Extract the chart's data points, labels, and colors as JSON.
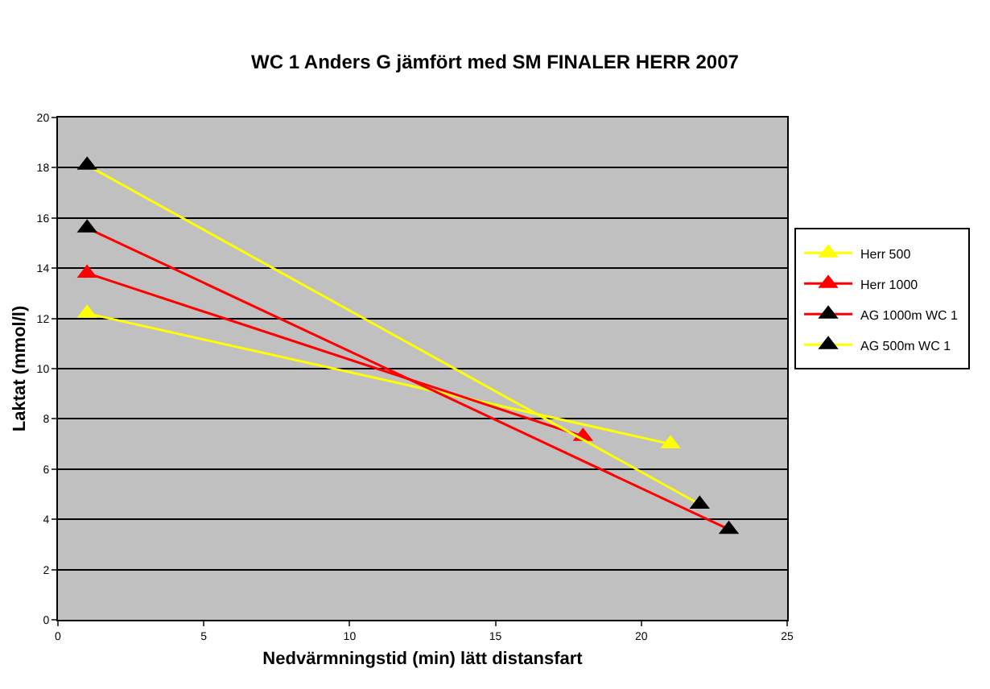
{
  "chart_data": {
    "type": "line",
    "title": "WC 1 Anders G jämfört med SM FINALER HERR 2007",
    "xlabel": "Nedvärmningstid (min) lätt distansfart",
    "ylabel": "Laktat (mmol/l)",
    "xlim": [
      0,
      25
    ],
    "xticks": [
      0,
      5,
      10,
      15,
      20,
      25
    ],
    "ylim": [
      0,
      20
    ],
    "yticks": [
      0,
      2,
      4,
      6,
      8,
      10,
      12,
      14,
      16,
      18,
      20
    ],
    "grid": "y",
    "legend": "right",
    "marker": "triangle",
    "line_style": "solid",
    "series": [
      {
        "name": "Herr 500",
        "color": "#ffff00",
        "x": [
          1,
          21
        ],
        "values": [
          12.2,
          7.0
        ]
      },
      {
        "name": "Herr 1000",
        "color": "#ff0000",
        "x": [
          1,
          18
        ],
        "values": [
          13.8,
          7.3
        ]
      },
      {
        "name": "AG 1000m WC 1",
        "color": "#ff0000",
        "colors": [
          "#000000",
          "#000000"
        ],
        "x": [
          1,
          23
        ],
        "values": [
          15.6,
          3.6
        ]
      },
      {
        "name": "AG 500m WC 1",
        "color": "#ffff00",
        "colors": [
          "#000000",
          "#000000"
        ],
        "x": [
          1,
          22
        ],
        "values": [
          18.1,
          4.6
        ]
      }
    ]
  }
}
